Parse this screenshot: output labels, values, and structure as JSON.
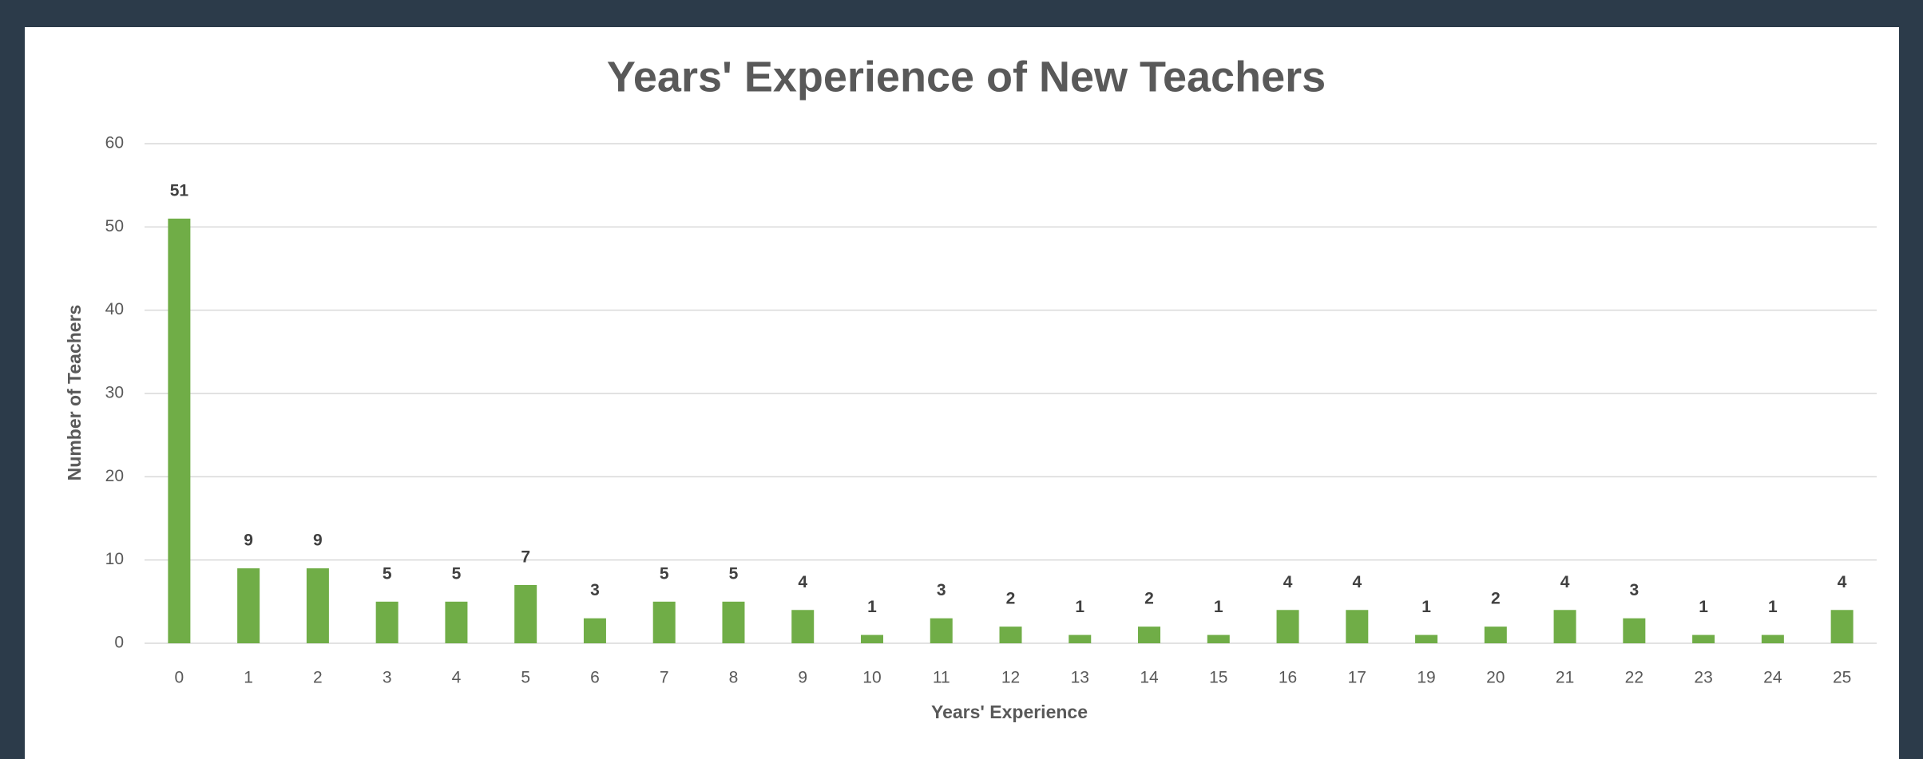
{
  "chart_data": {
    "type": "bar",
    "title": "Years' Experience of New Teachers",
    "x_label": "Years' Experience",
    "y_label": "Number of Teachers",
    "categories": [
      "0",
      "1",
      "2",
      "3",
      "4",
      "5",
      "6",
      "7",
      "8",
      "9",
      "10",
      "11",
      "12",
      "13",
      "14",
      "15",
      "16",
      "17",
      "19",
      "20",
      "21",
      "22",
      "23",
      "24",
      "25"
    ],
    "values": [
      51,
      9,
      9,
      5,
      5,
      7,
      3,
      5,
      5,
      4,
      1,
      3,
      2,
      1,
      2,
      1,
      4,
      4,
      1,
      2,
      4,
      3,
      1,
      1,
      4
    ],
    "color": "#70ad47",
    "ylim": [
      0,
      60
    ],
    "yticks": [
      0,
      10,
      20,
      30,
      40,
      50,
      60
    ],
    "grid": true
  }
}
